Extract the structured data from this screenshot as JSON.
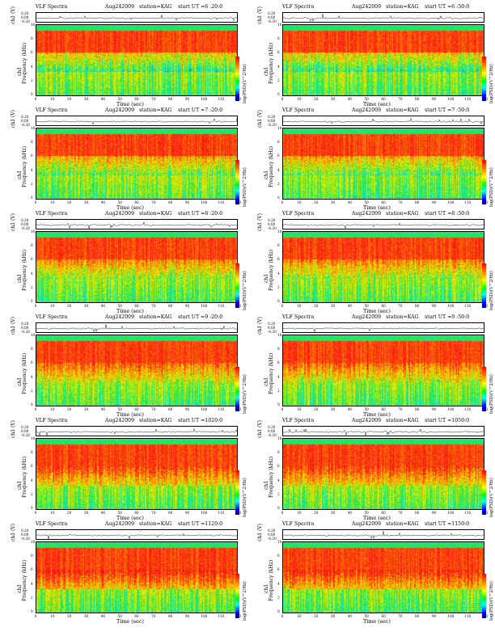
{
  "figure": {
    "xlabel": "Time  (sec)",
    "ts_label": "ch1 (V)",
    "freq_label": "Frequency  (kHz)",
    "freq_label_alt": "ch1",
    "cbar_label": "log(PSD)(V^2/Hz)",
    "x_ticks": [
      "0",
      "10",
      "20",
      "30",
      "40",
      "50",
      "60",
      "70",
      "80",
      "90",
      "100",
      "110",
      "120"
    ],
    "y_ticks": [
      "10",
      "8",
      "6",
      "4",
      "2",
      "0"
    ],
    "ts_ticks": [
      "0.20",
      "0.00",
      "-0.20"
    ]
  },
  "chart_data": [
    {
      "type": "heatmap",
      "title": "VLF Spectra",
      "date": "Aug242009",
      "station": "station=KAG",
      "start": "start  UT  =6 :20:0",
      "xlim": [
        0,
        120
      ],
      "ylim": [
        0,
        10
      ]
    },
    {
      "type": "heatmap",
      "title": "VLF Spectra",
      "date": "Aug242009",
      "station": "station=KAG",
      "start": "start  UT  =6 :50:0",
      "xlim": [
        0,
        120
      ],
      "ylim": [
        0,
        10
      ]
    },
    {
      "type": "heatmap",
      "title": "VLF Spectra",
      "date": "Aug242009",
      "station": "station=KAG",
      "start": "start  UT  =7 :20:0",
      "xlim": [
        0,
        120
      ],
      "ylim": [
        0,
        10
      ]
    },
    {
      "type": "heatmap",
      "title": "VLF Spectra",
      "date": "Aug242009",
      "station": "station=KAG",
      "start": "start  UT  =7 :50:0",
      "xlim": [
        0,
        120
      ],
      "ylim": [
        0,
        10
      ]
    },
    {
      "type": "heatmap",
      "title": "VLF Spectra",
      "date": "Aug242009",
      "station": "station=KAG",
      "start": "start  UT  =8 :20:0",
      "xlim": [
        0,
        120
      ],
      "ylim": [
        0,
        10
      ]
    },
    {
      "type": "heatmap",
      "title": "VLF Spectra",
      "date": "Aug242009",
      "station": "station=KAG",
      "start": "start  UT  =8 :50:0",
      "xlim": [
        0,
        120
      ],
      "ylim": [
        0,
        10
      ]
    },
    {
      "type": "heatmap",
      "title": "VLF Spectra",
      "date": "Aug242009",
      "station": "station=KAG",
      "start": "start  UT  =9 :20:0",
      "xlim": [
        0,
        120
      ],
      "ylim": [
        0,
        10
      ]
    },
    {
      "type": "heatmap",
      "title": "VLF Spectra",
      "date": "Aug242009",
      "station": "station=KAG",
      "start": "start  UT  =9 :50:0",
      "xlim": [
        0,
        120
      ],
      "ylim": [
        0,
        10
      ]
    },
    {
      "type": "heatmap",
      "title": "VLF Spectra",
      "date": "Aug242009",
      "station": "station=KAG",
      "start": "start  UT  =1020:0",
      "xlim": [
        0,
        120
      ],
      "ylim": [
        0,
        10
      ]
    },
    {
      "type": "heatmap",
      "title": "VLF Spectra",
      "date": "Aug242009",
      "station": "station=KAG",
      "start": "start  UT  =1050:0",
      "xlim": [
        0,
        120
      ],
      "ylim": [
        0,
        10
      ]
    },
    {
      "type": "heatmap",
      "title": "VLF Spectra",
      "date": "Aug242009",
      "station": "station=KAG",
      "start": "start  UT  =1120:0",
      "xlim": [
        0,
        120
      ],
      "ylim": [
        0,
        10
      ]
    },
    {
      "type": "heatmap",
      "title": "VLF Spectra",
      "date": "Aug242009",
      "station": "station=KAG",
      "start": "start  UT  =1150:0",
      "xlim": [
        0,
        120
      ],
      "ylim": [
        0,
        10
      ]
    }
  ]
}
